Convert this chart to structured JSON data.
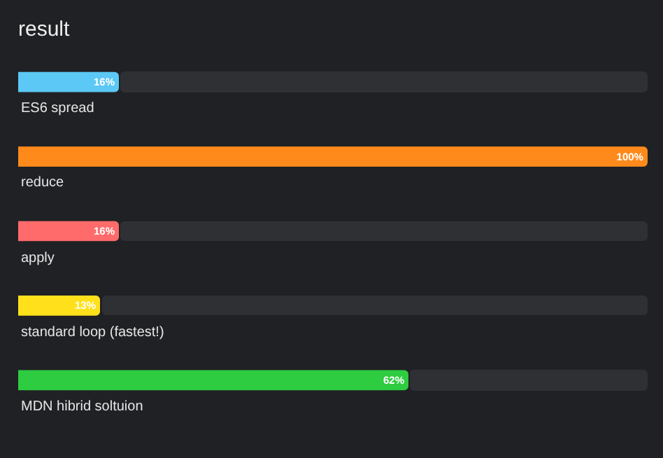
{
  "chart_data": {
    "type": "bar",
    "orientation": "horizontal",
    "title": "result",
    "categories": [
      "ES6 spread",
      "reduce",
      "apply",
      "standard loop (fastest!)",
      "MDN hibrid soltuion"
    ],
    "values": [
      16,
      100,
      16,
      13,
      62
    ],
    "colors": [
      "#5bc8f5",
      "#ff8a1c",
      "#ff6b6b",
      "#ffe01b",
      "#2ecc40"
    ],
    "value_labels": [
      "16%",
      "100%",
      "16%",
      "13%",
      "62%"
    ],
    "tick_labels": "y"
  }
}
